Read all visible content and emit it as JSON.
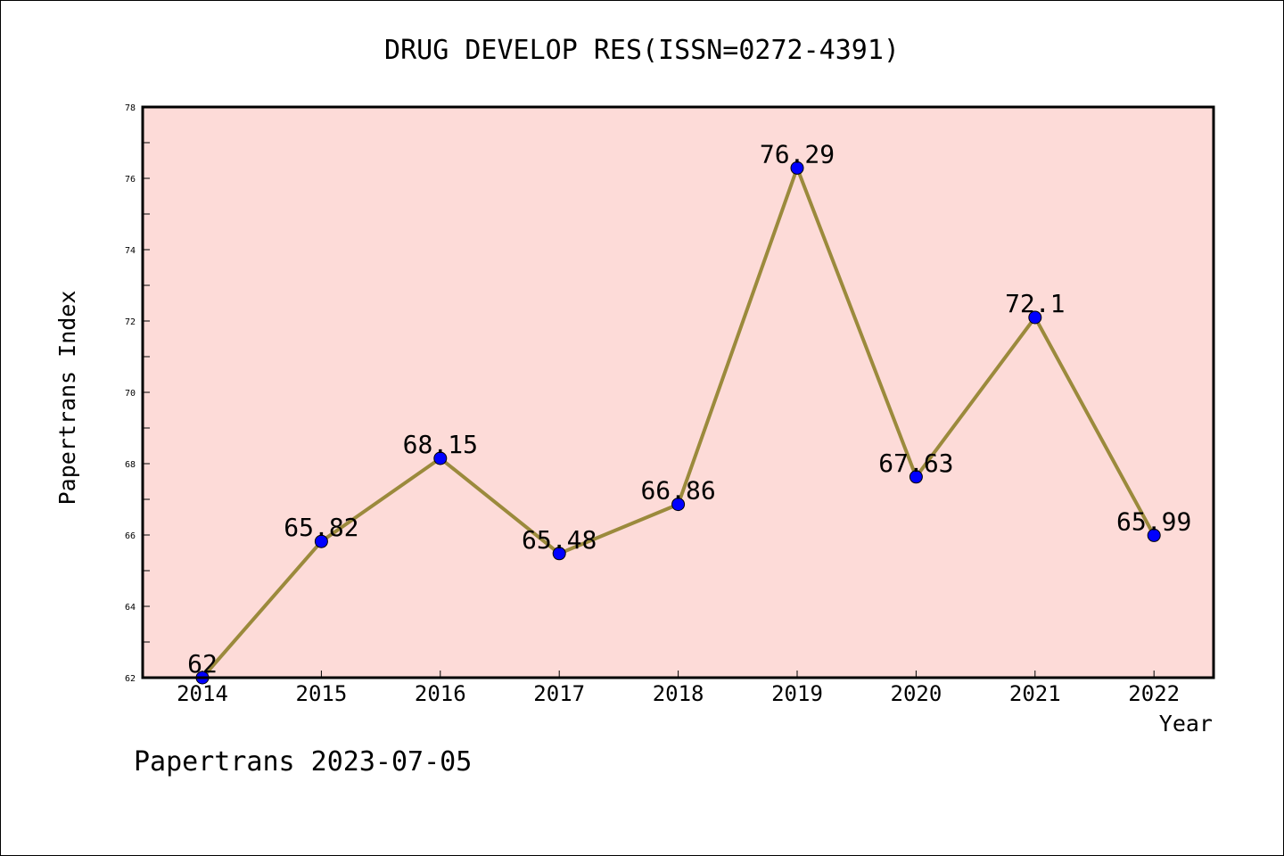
{
  "chart_data": {
    "type": "line",
    "title": "DRUG DEVELOP RES(ISSN=0272-4391)",
    "xlabel": "Year",
    "ylabel": "Papertrans Index",
    "categories": [
      "2014",
      "2015",
      "2016",
      "2017",
      "2018",
      "2019",
      "2020",
      "2021",
      "2022"
    ],
    "values": [
      62,
      65.82,
      68.15,
      65.48,
      66.86,
      76.29,
      67.63,
      72.1,
      65.99
    ],
    "data_labels": [
      "62",
      "65.82",
      "68.15",
      "65.48",
      "66.86",
      "76.29",
      "67.63",
      "72.1",
      "65.99"
    ],
    "ylim": [
      62,
      78
    ],
    "yticks": [
      62,
      64,
      66,
      68,
      70,
      72,
      74,
      76,
      78
    ],
    "grid": false,
    "legend": "none",
    "colors": {
      "plot_background": "#fddbd8",
      "line": "#9b8a3c",
      "marker": "#0000ff",
      "axis": "#000000"
    }
  },
  "footer": "Papertrans 2023-07-05"
}
